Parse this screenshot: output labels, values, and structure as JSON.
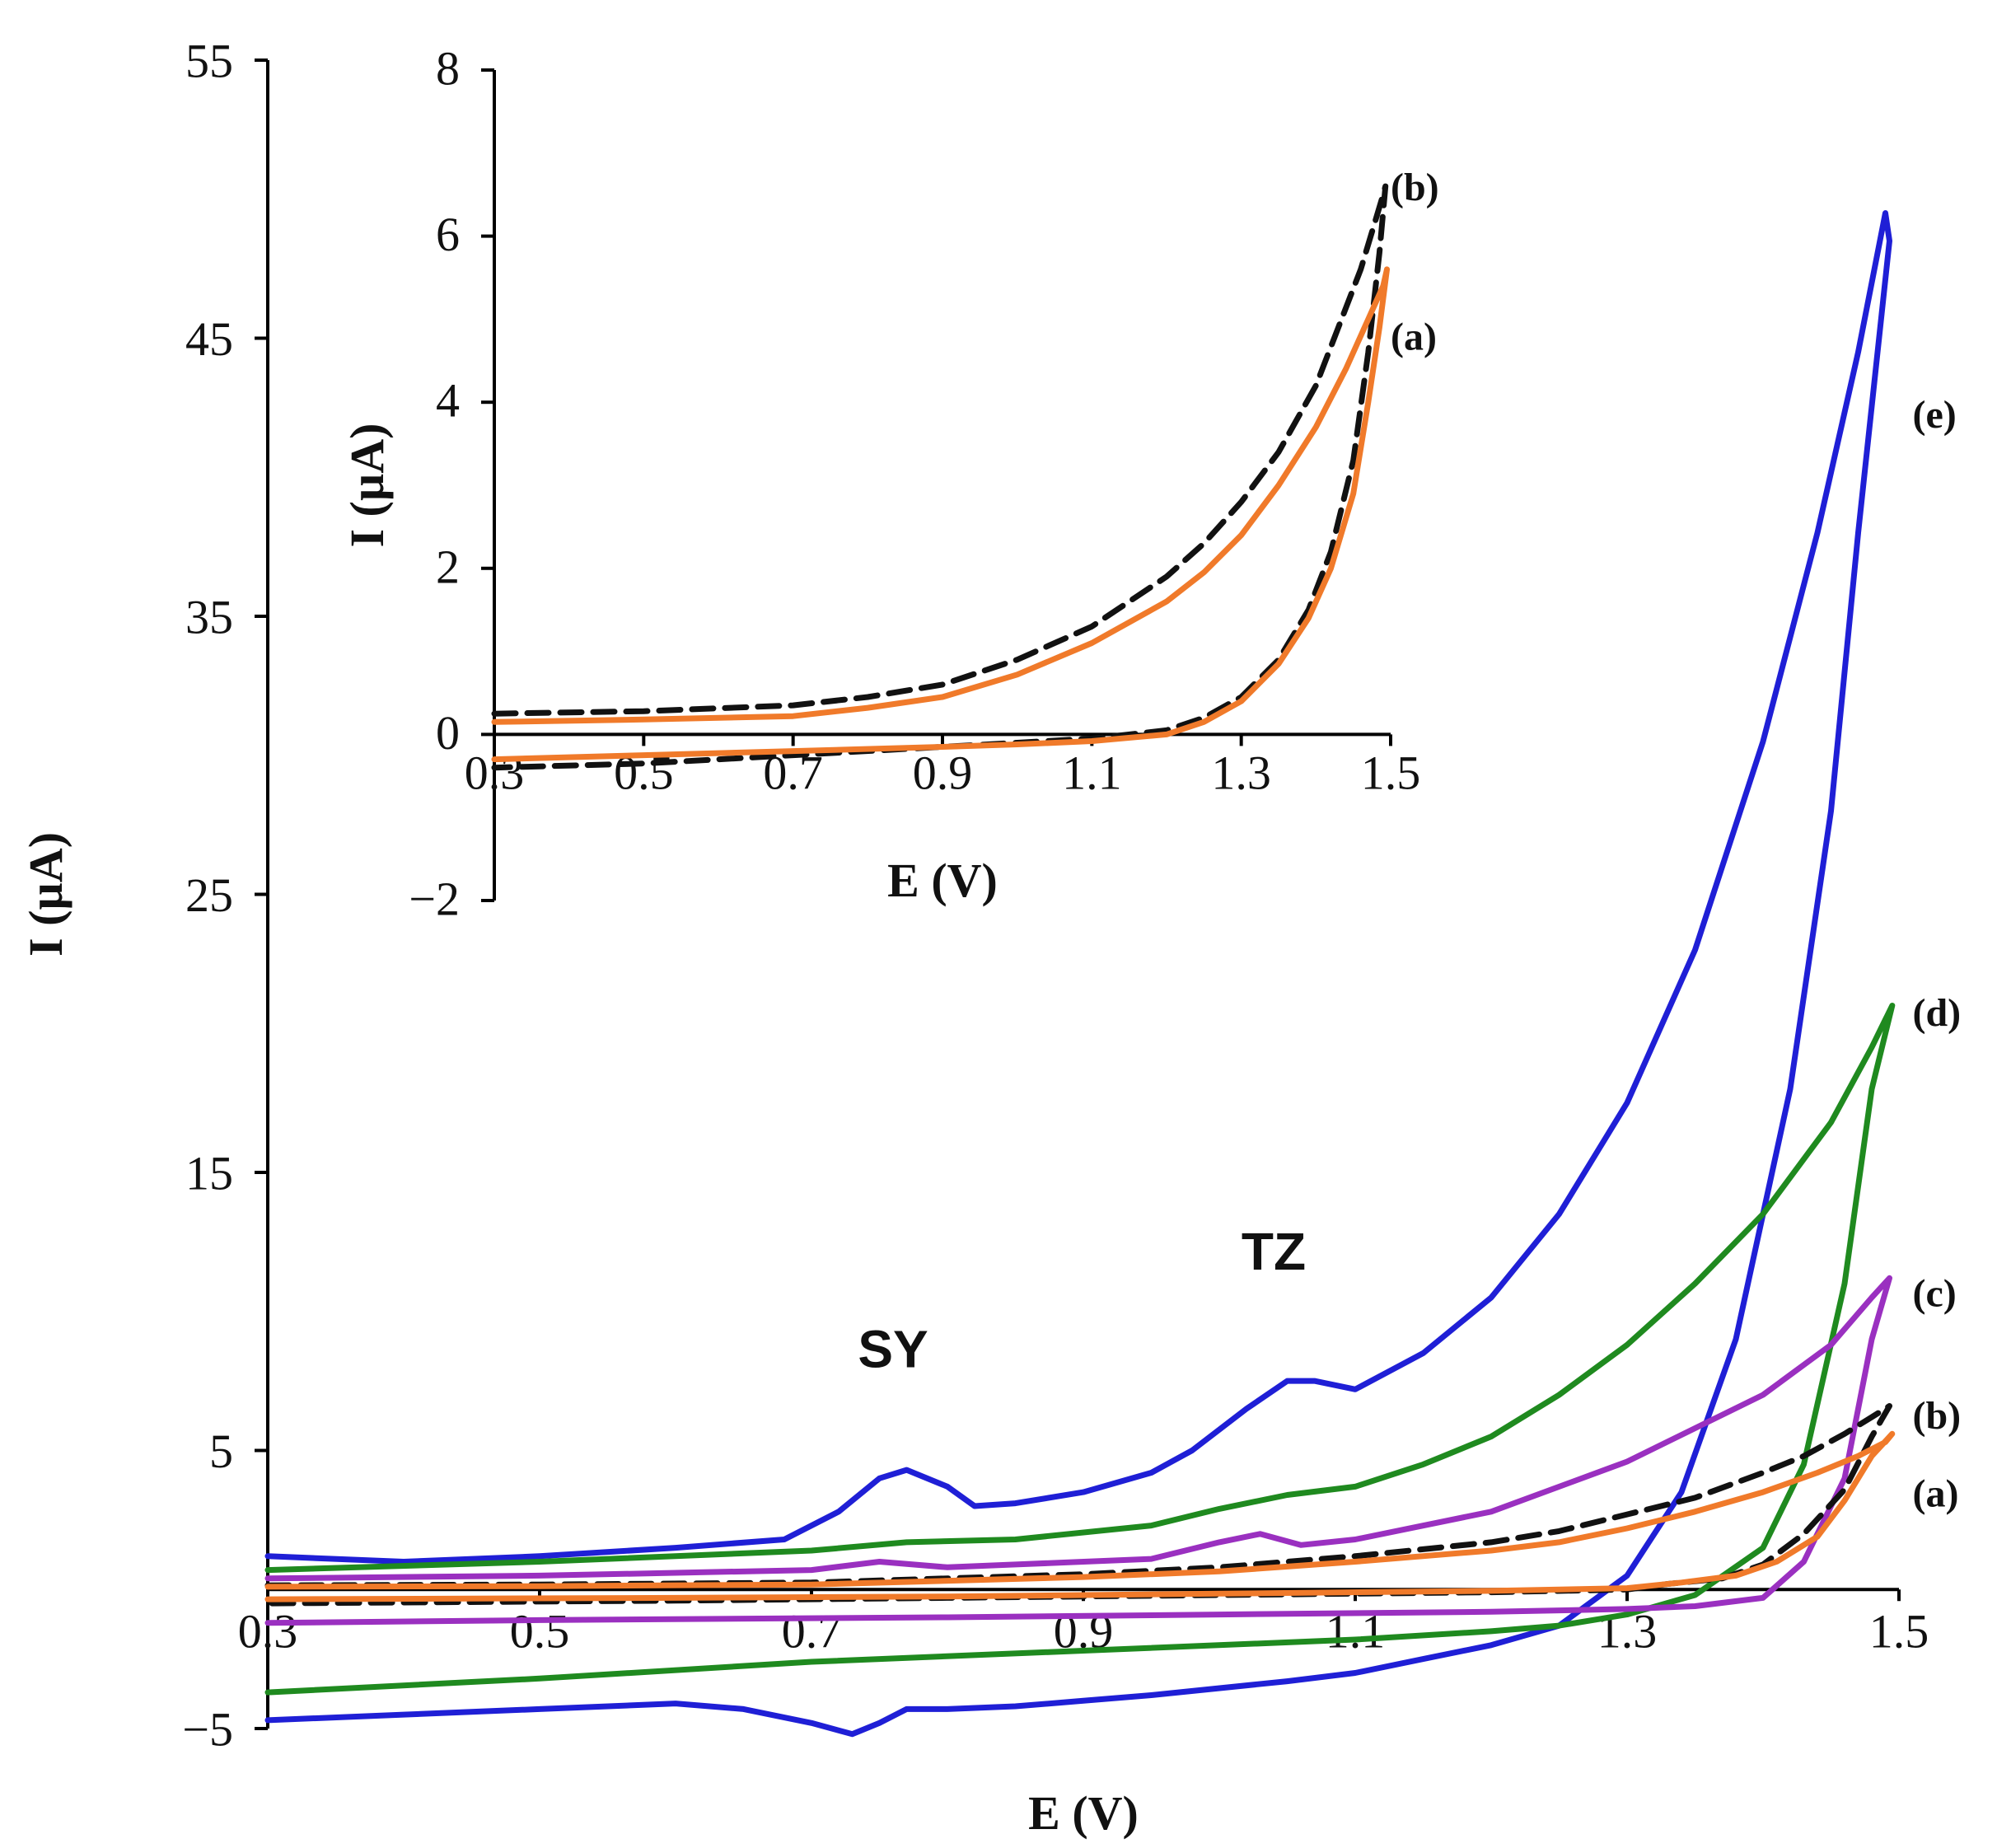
{
  "chart_data": [
    {
      "id": "main",
      "type": "line",
      "title": "",
      "xlabel": "E (V)",
      "ylabel": "I (µA)",
      "xlim": [
        0.3,
        1.5
      ],
      "ylim": [
        -5,
        55
      ],
      "xticks": [
        "0.3",
        "0.5",
        "0.7",
        "0.9",
        "1.1",
        "1.3",
        "1.5"
      ],
      "yticks": [
        "-5",
        "5",
        "15",
        "25",
        "35",
        "45",
        "55"
      ],
      "grid": false,
      "annotations": [
        {
          "text": "SY",
          "x": 0.76,
          "y": 8.0
        },
        {
          "text": "TZ",
          "x": 1.04,
          "y": 11.5
        }
      ],
      "series": [
        {
          "name": "(e)",
          "color": "#1f1fd6",
          "dash": "solid",
          "label_pos": [
            1.51,
            42.3
          ],
          "x": [
            0.3,
            0.4,
            0.5,
            0.6,
            0.68,
            0.72,
            0.75,
            0.77,
            0.8,
            0.82,
            0.85,
            0.9,
            0.95,
            0.98,
            1.02,
            1.05,
            1.07,
            1.1,
            1.15,
            1.2,
            1.25,
            1.3,
            1.35,
            1.4,
            1.44,
            1.47,
            1.49,
            1.493,
            1.47,
            1.45,
            1.42,
            1.38,
            1.34,
            1.3,
            1.25,
            1.2,
            1.15,
            1.1,
            1.05,
            0.95,
            0.9,
            0.85,
            0.8,
            0.77,
            0.75,
            0.73,
            0.7,
            0.65,
            0.6,
            0.5,
            0.4,
            0.3
          ],
          "y": [
            1.2,
            1.0,
            1.2,
            1.5,
            1.8,
            2.8,
            4.0,
            4.3,
            3.7,
            3.0,
            3.1,
            3.5,
            4.2,
            5.0,
            6.5,
            7.5,
            7.5,
            7.2,
            8.5,
            10.5,
            13.5,
            17.5,
            23.0,
            30.5,
            38.0,
            44.5,
            49.5,
            48.5,
            38.0,
            28.0,
            18.0,
            9.0,
            3.5,
            0.5,
            -1.3,
            -2.0,
            -2.5,
            -3.0,
            -3.3,
            -3.8,
            -4.0,
            -4.2,
            -4.3,
            -4.3,
            -4.8,
            -5.2,
            -4.8,
            -4.3,
            -4.1,
            -4.3,
            -4.5,
            -4.7
          ]
        },
        {
          "name": "(d)",
          "color": "#1f8a1f",
          "dash": "solid",
          "label_pos": [
            1.51,
            20.8
          ],
          "x": [
            0.3,
            0.5,
            0.7,
            0.77,
            0.85,
            0.95,
            1.0,
            1.05,
            1.1,
            1.15,
            1.2,
            1.25,
            1.3,
            1.35,
            1.4,
            1.45,
            1.48,
            1.495,
            1.48,
            1.46,
            1.43,
            1.4,
            1.35,
            1.3,
            1.25,
            1.2,
            1.1,
            0.9,
            0.7,
            0.5,
            0.3
          ],
          "y": [
            0.7,
            1.0,
            1.4,
            1.7,
            1.8,
            2.3,
            2.9,
            3.4,
            3.7,
            4.5,
            5.5,
            7.0,
            8.8,
            11.0,
            13.5,
            16.8,
            19.5,
            21.0,
            18.0,
            11.0,
            4.5,
            1.5,
            -0.2,
            -0.9,
            -1.3,
            -1.5,
            -1.8,
            -2.2,
            -2.6,
            -3.2,
            -3.7
          ]
        },
        {
          "name": "(c)",
          "color": "#9a30c0",
          "dash": "solid",
          "label_pos": [
            1.51,
            10.7
          ],
          "x": [
            0.3,
            0.5,
            0.7,
            0.75,
            0.8,
            0.85,
            0.95,
            1.0,
            1.03,
            1.06,
            1.1,
            1.2,
            1.3,
            1.4,
            1.45,
            1.48,
            1.493,
            1.48,
            1.46,
            1.43,
            1.4,
            1.35,
            1.3,
            1.2,
            1.0,
            0.8,
            0.5,
            0.3
          ],
          "y": [
            0.4,
            0.5,
            0.7,
            1.0,
            0.8,
            0.9,
            1.1,
            1.7,
            2.0,
            1.6,
            1.8,
            2.8,
            4.6,
            7.0,
            8.8,
            10.5,
            11.2,
            9.0,
            4.0,
            1.0,
            -0.3,
            -0.6,
            -0.7,
            -0.8,
            -0.9,
            -1.0,
            -1.1,
            -1.2
          ]
        },
        {
          "name": "(b)",
          "color": "#111111",
          "dash": "dashed",
          "label_pos": [
            1.51,
            6.3
          ],
          "x": [
            0.3,
            0.5,
            0.7,
            0.9,
            1.0,
            1.1,
            1.2,
            1.25,
            1.3,
            1.35,
            1.4,
            1.43,
            1.46,
            1.48,
            1.493,
            1.48,
            1.46,
            1.43,
            1.4,
            1.37,
            1.33,
            1.3,
            1.2,
            1.0,
            0.8,
            0.6,
            0.3
          ],
          "y": [
            0.15,
            0.18,
            0.25,
            0.55,
            0.8,
            1.2,
            1.7,
            2.1,
            2.7,
            3.3,
            4.2,
            4.8,
            5.6,
            6.2,
            6.6,
            5.5,
            3.6,
            2.0,
            0.9,
            0.4,
            0.2,
            0.0,
            -0.1,
            -0.2,
            -0.3,
            -0.4,
            -0.5
          ]
        },
        {
          "name": "(a)",
          "color": "#f07a2a",
          "dash": "solid",
          "label_pos": [
            1.51,
            3.5
          ],
          "x": [
            0.3,
            0.5,
            0.7,
            0.9,
            1.0,
            1.1,
            1.2,
            1.25,
            1.3,
            1.35,
            1.4,
            1.44,
            1.47,
            1.49,
            1.495,
            1.48,
            1.46,
            1.44,
            1.41,
            1.38,
            1.34,
            1.3,
            1.2,
            1.0,
            0.8,
            0.6,
            0.3
          ],
          "y": [
            0.1,
            0.12,
            0.18,
            0.45,
            0.65,
            1.0,
            1.4,
            1.7,
            2.2,
            2.8,
            3.5,
            4.2,
            4.8,
            5.3,
            5.6,
            4.8,
            3.2,
            1.9,
            1.0,
            0.5,
            0.25,
            0.05,
            -0.05,
            -0.15,
            -0.25,
            -0.3,
            -0.35
          ]
        }
      ]
    },
    {
      "id": "inset",
      "type": "line",
      "title": "",
      "xlabel": "E (V)",
      "ylabel": "I (µA)",
      "xlim": [
        0.3,
        1.5
      ],
      "ylim": [
        -2,
        8
      ],
      "xticks": [
        "0.3",
        "0.5",
        "0.7",
        "0.9",
        "1.1",
        "1.3",
        "1.5"
      ],
      "yticks": [
        "-2",
        "0",
        "2",
        "4",
        "6",
        "8"
      ],
      "grid": false,
      "series": [
        {
          "name": "(b)",
          "color": "#111111",
          "dash": "dashed",
          "label_pos": [
            1.5,
            6.6
          ],
          "x": [
            0.3,
            0.5,
            0.7,
            0.8,
            0.9,
            1.0,
            1.1,
            1.2,
            1.25,
            1.3,
            1.35,
            1.4,
            1.43,
            1.46,
            1.48,
            1.49,
            1.493,
            1.485,
            1.47,
            1.45,
            1.42,
            1.39,
            1.35,
            1.3,
            1.25,
            1.2,
            1.1,
            1.0,
            0.9,
            0.7,
            0.5,
            0.3
          ],
          "y": [
            0.25,
            0.28,
            0.35,
            0.45,
            0.6,
            0.9,
            1.3,
            1.9,
            2.3,
            2.8,
            3.4,
            4.2,
            4.9,
            5.6,
            6.2,
            6.5,
            6.6,
            5.8,
            4.6,
            3.3,
            2.2,
            1.5,
            0.9,
            0.45,
            0.2,
            0.05,
            -0.05,
            -0.1,
            -0.15,
            -0.25,
            -0.35,
            -0.4
          ]
        },
        {
          "name": "(a)",
          "color": "#f07a2a",
          "dash": "solid",
          "label_pos": [
            1.5,
            4.8
          ],
          "x": [
            0.3,
            0.5,
            0.7,
            0.8,
            0.9,
            1.0,
            1.1,
            1.2,
            1.25,
            1.3,
            1.35,
            1.4,
            1.44,
            1.47,
            1.49,
            1.495,
            1.485,
            1.47,
            1.45,
            1.42,
            1.39,
            1.35,
            1.3,
            1.25,
            1.2,
            1.1,
            1.0,
            0.9,
            0.7,
            0.5,
            0.3
          ],
          "y": [
            0.15,
            0.18,
            0.22,
            0.32,
            0.45,
            0.72,
            1.1,
            1.6,
            1.95,
            2.4,
            3.0,
            3.7,
            4.4,
            5.0,
            5.4,
            5.6,
            4.9,
            4.0,
            2.9,
            2.0,
            1.4,
            0.85,
            0.4,
            0.15,
            0.0,
            -0.08,
            -0.12,
            -0.15,
            -0.2,
            -0.25,
            -0.3
          ]
        }
      ]
    }
  ]
}
